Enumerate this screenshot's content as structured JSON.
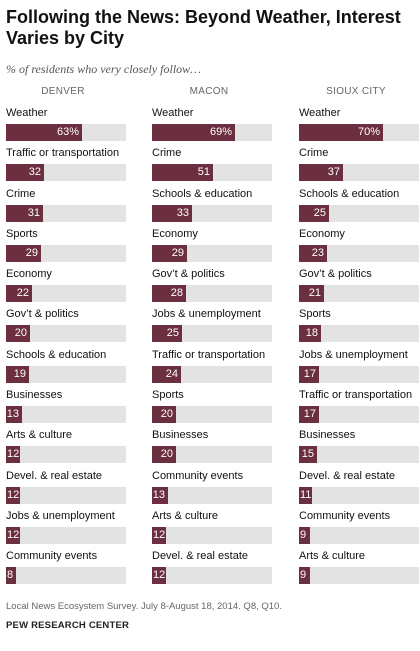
{
  "title": "Following the News: Beyond Weather, Interest Varies by City",
  "subtitle": "% of residents who very closely follow…",
  "note": "Local News Ecosystem Survey. July 8-August 18, 2014. Q8, Q10.",
  "source": "PEW RESEARCH CENTER",
  "colors": {
    "bar": "#6b2f3f",
    "track": "#e3e3e3"
  },
  "chart_data": [
    {
      "type": "bar",
      "title": "DENVER",
      "unit": "%",
      "xlim": [
        0,
        100
      ],
      "categories": [
        "Weather",
        "Traffic or transportation",
        "Crime",
        "Sports",
        "Economy",
        "Gov’t & politics",
        "Schools & education",
        "Businesses",
        "Arts & culture",
        "Devel. & real estate",
        "Jobs & unemployment",
        "Community events"
      ],
      "values": [
        63,
        32,
        31,
        29,
        22,
        20,
        19,
        13,
        12,
        12,
        12,
        8
      ]
    },
    {
      "type": "bar",
      "title": "MACON",
      "unit": "%",
      "xlim": [
        0,
        100
      ],
      "categories": [
        "Weather",
        "Crime",
        "Schools & education",
        "Economy",
        "Gov’t & politics",
        "Jobs & unemployment",
        "Traffic or transportation",
        "Sports",
        "Businesses",
        "Community events",
        "Arts & culture",
        "Devel. & real estate"
      ],
      "values": [
        69,
        51,
        33,
        29,
        28,
        25,
        24,
        20,
        20,
        13,
        12,
        12
      ]
    },
    {
      "type": "bar",
      "title": "SIOUX CITY",
      "unit": "%",
      "xlim": [
        0,
        100
      ],
      "categories": [
        "Weather",
        "Crime",
        "Schools & education",
        "Economy",
        "Gov’t & politics",
        "Sports",
        "Jobs & unemployment",
        "Traffic or transportation",
        "Businesses",
        "Devel. & real estate",
        "Community events",
        "Arts & culture"
      ],
      "values": [
        70,
        37,
        25,
        23,
        21,
        18,
        17,
        17,
        15,
        11,
        9,
        9
      ]
    }
  ]
}
